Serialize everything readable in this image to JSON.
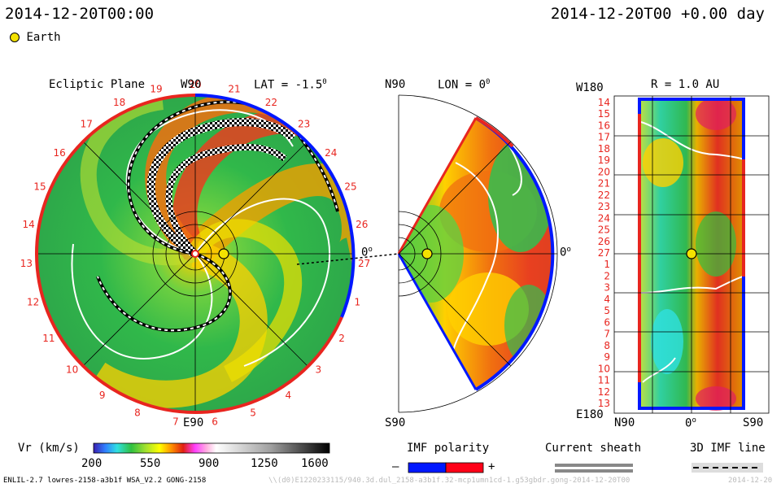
{
  "header": {
    "datetime_left": "2014-12-20T00:00",
    "datetime_right": "2014-12-20T00 +0.00 day"
  },
  "legend": {
    "earth_label": "Earth"
  },
  "ecliptic_panel": {
    "title": "Ecliptic Plane",
    "top_label": "W90",
    "lat_label": "LAT = -1.5",
    "lat_degree": "0",
    "bottom_label": "E90",
    "right_label": "0",
    "carrington_labels": [
      "20",
      "21",
      "22",
      "23",
      "24",
      "25",
      "26",
      "27",
      "1",
      "2",
      "3",
      "4",
      "5",
      "6",
      "7",
      "8",
      "9",
      "10",
      "11",
      "12",
      "13",
      "14",
      "15",
      "16",
      "17",
      "18",
      "19"
    ]
  },
  "meridional_panel": {
    "top_label": "N90",
    "lon_label": "LON = 0",
    "lon_degree": "0",
    "bottom_label": "S90",
    "right_label": "0"
  },
  "radial_panel": {
    "r_label": "R = 1.0 AU",
    "top_left": "W180",
    "bottom_left": "E180",
    "x_left": "N90",
    "x_mid": "0",
    "x_right": "S90",
    "y_labels": [
      "14",
      "15",
      "16",
      "17",
      "18",
      "19",
      "20",
      "21",
      "22",
      "23",
      "24",
      "25",
      "26",
      "27",
      "1",
      "2",
      "3",
      "4",
      "5",
      "6",
      "7",
      "8",
      "9",
      "10",
      "11",
      "12",
      "13"
    ]
  },
  "colorbar": {
    "title": "Vr (km/s)",
    "ticks": [
      "200",
      "550",
      "900",
      "1250",
      "1600"
    ]
  },
  "imf_polarity": {
    "title": "IMF polarity",
    "minus": "–",
    "plus": "+",
    "colors": [
      "#0018ff",
      "#ff0018"
    ]
  },
  "current_sheath": {
    "title": "Current sheath"
  },
  "imf_line": {
    "title": "3D IMF line"
  },
  "footer": {
    "model_info": "ENLIL-2.7 lowres-2158-a3b1f WSA_V2.2 GONG-2158",
    "run_path": "\\\\(d0)E1220233115/940.3d.dul_2158-a3b1f.32-mcp1umn1cd-1.g53gbdr.gong-2014-12-20T00",
    "date_stamp": "2014-12-20"
  }
}
